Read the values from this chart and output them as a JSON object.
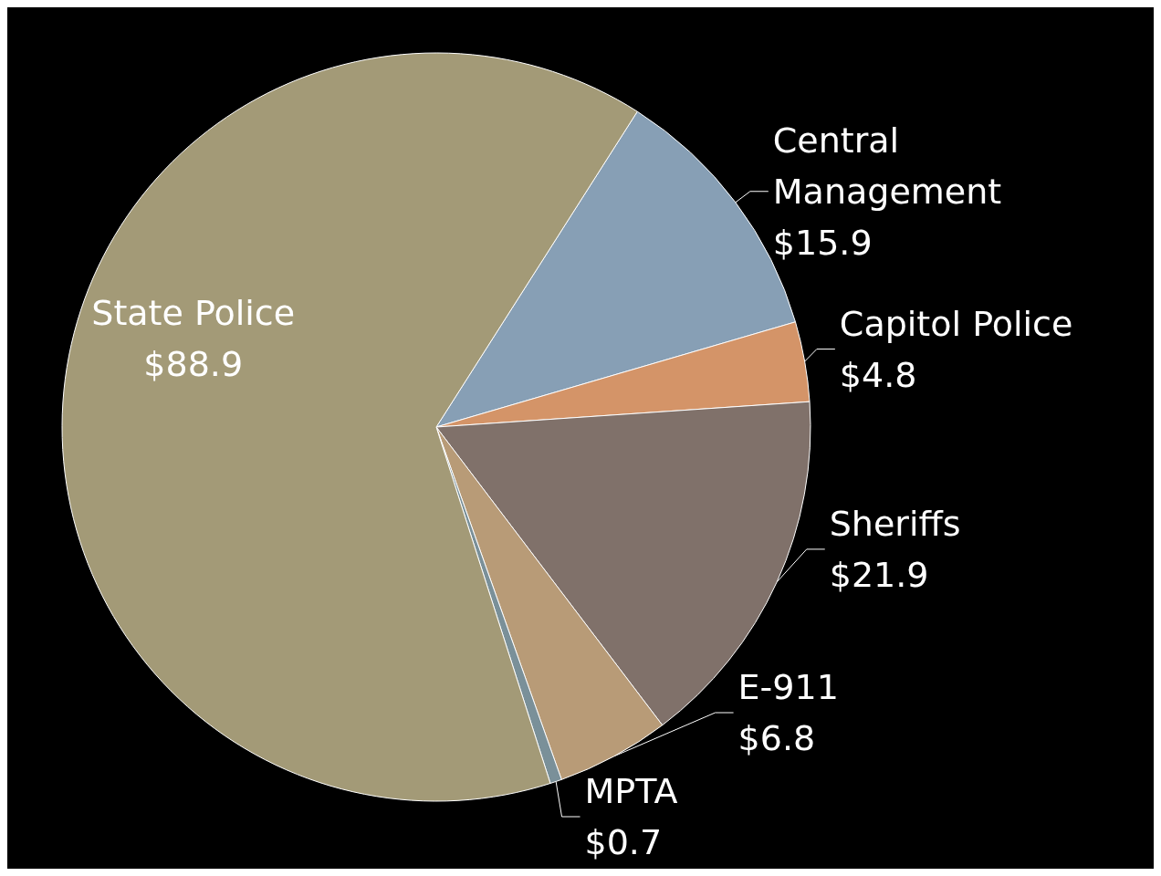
{
  "chart_data": {
    "type": "pie",
    "categories": [
      "Central Management",
      "Capitol Police",
      "Sheriffs",
      "E-911",
      "MPTA",
      "State Police"
    ],
    "values": [
      15.9,
      4.8,
      21.9,
      6.8,
      0.7,
      88.9
    ],
    "value_labels": [
      "$15.9",
      "$4.8",
      "$21.9",
      "$6.8",
      "$0.7",
      "$88.9"
    ],
    "colors": [
      "#879fb5",
      "#d49468",
      "#80716a",
      "#b89b77",
      "#7a9099",
      "#a39a77"
    ]
  }
}
